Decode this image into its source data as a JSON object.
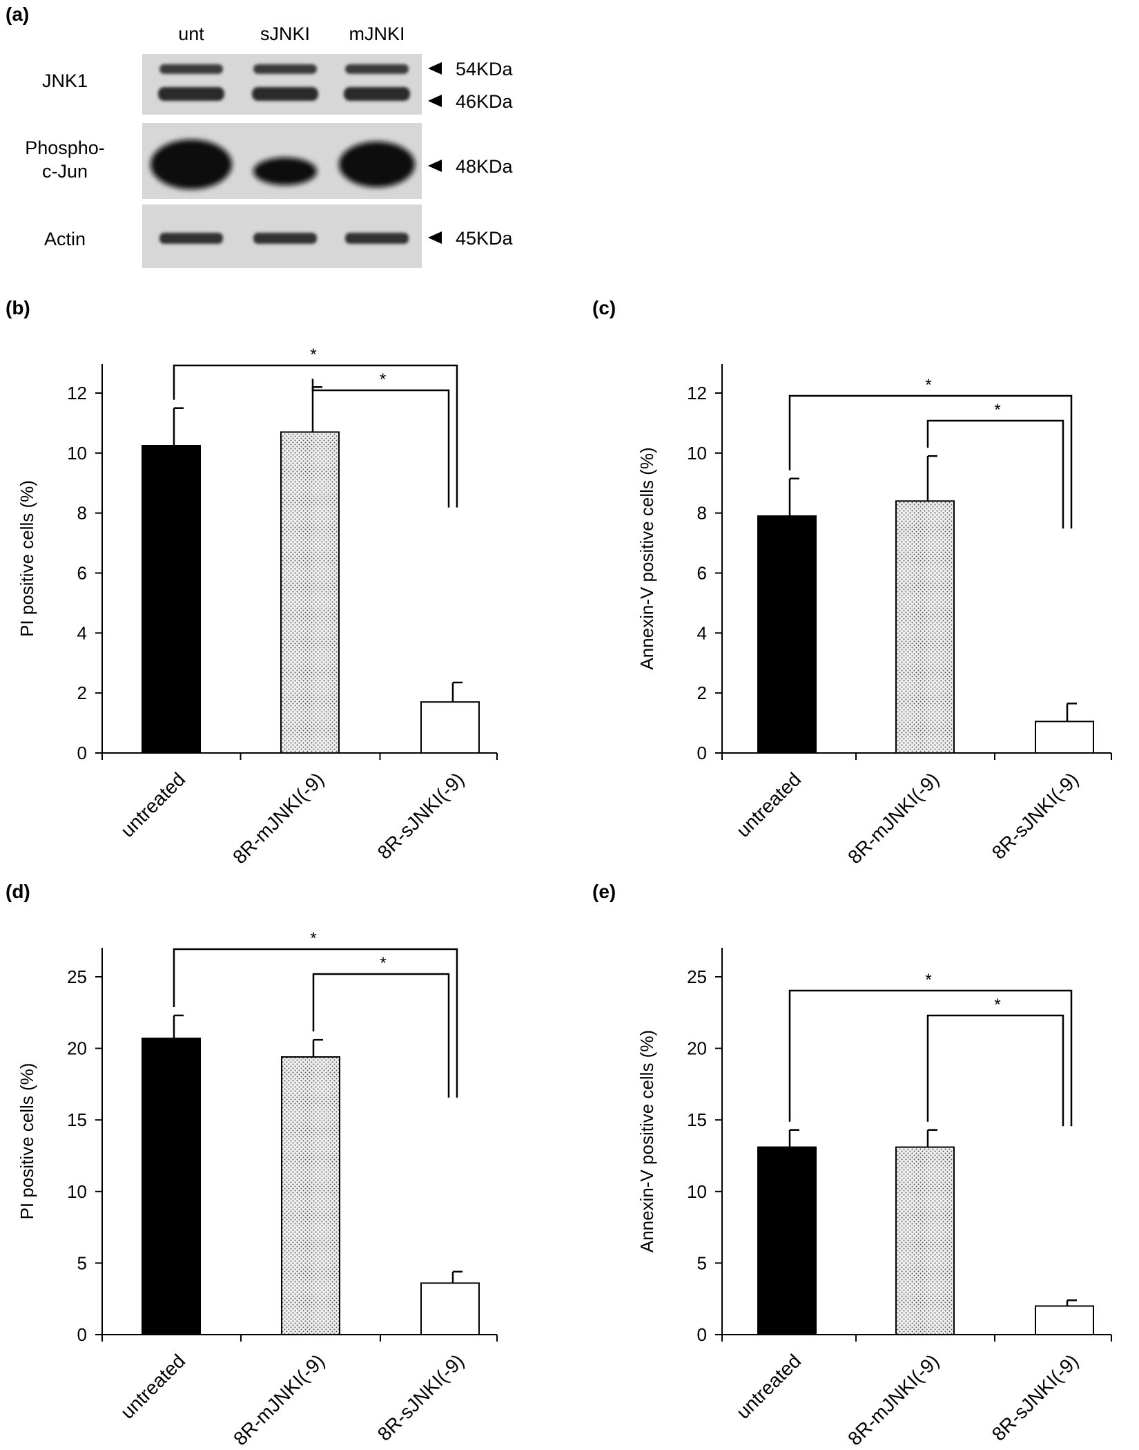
{
  "colors": {
    "untreated": "#000000",
    "mJNKI": "#dcdcdc",
    "sJNKI": "#ffffff",
    "blot_bg": "#d7d7d7",
    "band": "#3a3a3a"
  },
  "blot": {
    "panel_label": "(a)",
    "lanes": [
      "unt",
      "sJNKI",
      "mJNKI"
    ],
    "rows": [
      {
        "label_lines": [
          "JNK1"
        ],
        "markers": [
          "54KDa",
          "46KDa"
        ]
      },
      {
        "label_lines": [
          "Phospho-",
          "c-Jun"
        ],
        "markers": [
          "48KDa"
        ]
      },
      {
        "label_lines": [
          "Actin"
        ],
        "markers": [
          "45KDa"
        ]
      }
    ]
  },
  "chart_data": [
    {
      "panel": "(b)",
      "type": "bar",
      "categories": [
        "untreated",
        "8R-mJNKI(-9)",
        "8R-sJNKI(-9)"
      ],
      "values": [
        10.25,
        10.7,
        1.7
      ],
      "errors": [
        1.25,
        1.5,
        0.65
      ],
      "ylabel": "PI positive cells  (%)",
      "ylim": [
        0,
        12
      ],
      "yticks": [
        "0",
        "2",
        "4",
        "6",
        "8",
        "10",
        "12"
      ],
      "significance": [
        "*",
        "*"
      ]
    },
    {
      "panel": "(c)",
      "type": "bar",
      "categories": [
        "untreated",
        "8R-mJNKI(-9)",
        "8R-sJNKI(-9)"
      ],
      "values": [
        7.9,
        8.4,
        1.05
      ],
      "errors": [
        1.25,
        1.5,
        0.6
      ],
      "ylabel": "Annexin-V positive cells  (%)",
      "ylim": [
        0,
        12
      ],
      "yticks": [
        "0",
        "2",
        "4",
        "6",
        "8",
        "10",
        "12"
      ],
      "significance": [
        "*",
        "*"
      ]
    },
    {
      "panel": "(d)",
      "type": "bar",
      "categories": [
        "untreated",
        "8R-mJNKI(-9)",
        "8R-sJNKI(-9)"
      ],
      "values": [
        20.7,
        19.4,
        3.6
      ],
      "errors": [
        1.6,
        1.2,
        0.8
      ],
      "ylabel": "PI positive cells  (%)",
      "ylim": [
        0,
        25
      ],
      "yticks": [
        "0",
        "5",
        "10",
        "15",
        "20",
        "25"
      ],
      "significance": [
        "*",
        "*"
      ]
    },
    {
      "panel": "(e)",
      "type": "bar",
      "categories": [
        "untreated",
        "8R-mJNKI(-9)",
        "8R-sJNKI(-9)"
      ],
      "values": [
        13.1,
        13.1,
        2.0
      ],
      "errors": [
        1.2,
        1.2,
        0.4
      ],
      "ylabel": "Annexin-V positive cells  (%)",
      "ylim": [
        0,
        25
      ],
      "yticks": [
        "0",
        "5",
        "10",
        "15",
        "20",
        "25"
      ],
      "significance": [
        "*",
        "*"
      ]
    }
  ]
}
